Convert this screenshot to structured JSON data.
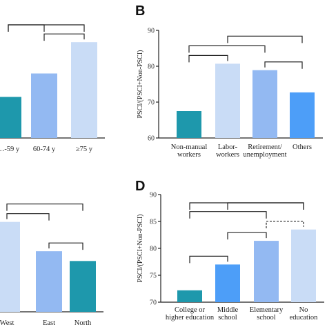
{
  "chart_data": [
    {
      "panel": "A",
      "type": "bar",
      "categories": [
        "…-59 y",
        "60-74 y",
        "≥75 y"
      ],
      "values": [
        70.5,
        76.5,
        84.5
      ],
      "colors": [
        "#1e98ac",
        "#93b9f2",
        "#c9dcf6"
      ],
      "ylim": [
        60,
        90
      ],
      "significance": [
        {
          "from": 1,
          "to": 2,
          "style": "solid"
        },
        {
          "from": 0,
          "to": 1,
          "style": "solid"
        },
        {
          "from": 0,
          "to": 2,
          "style": "solid"
        }
      ]
    },
    {
      "panel": "B",
      "type": "bar",
      "categories": [
        [
          "Non-manual",
          "workers"
        ],
        [
          "Labor-",
          "workers"
        ],
        [
          "Retirement/",
          "unemployment"
        ],
        [
          "Others"
        ]
      ],
      "values": [
        67.5,
        80.7,
        78.9,
        72.7
      ],
      "colors": [
        "#1e98ac",
        "#c9dcf6",
        "#93b9f2",
        "#4d9ef8"
      ],
      "ylabel": "PSCI/(PSCI+Non-PSCI)",
      "ylim": [
        60,
        90
      ],
      "yticks": [
        60,
        70,
        80,
        90
      ],
      "significance": [
        {
          "from": 0,
          "to": 1,
          "style": "solid"
        },
        {
          "from": 2,
          "to": 3,
          "style": "solid"
        },
        {
          "from": 0,
          "to": 2,
          "style": "solid"
        },
        {
          "from": 1,
          "to": 3,
          "style": "solid"
        }
      ]
    },
    {
      "panel": "C",
      "type": "bar",
      "categories": [
        "West",
        "East",
        "North"
      ],
      "values": [
        83,
        75.5,
        73
      ],
      "colors": [
        "#c9dcf6",
        "#93b9f2",
        "#1e98ac"
      ],
      "ylim": [
        60,
        90
      ],
      "significance": [
        {
          "from": 1,
          "to": 2,
          "style": "solid"
        },
        {
          "from": 0,
          "to": 1,
          "style": "solid"
        },
        {
          "from": 0,
          "to": 2,
          "style": "solid"
        }
      ]
    },
    {
      "panel": "D",
      "type": "bar",
      "categories": [
        [
          "College or",
          "higher education"
        ],
        [
          "Middle",
          "school"
        ],
        [
          "Elementary",
          "school"
        ],
        [
          "No",
          "education"
        ]
      ],
      "values": [
        72.2,
        77,
        81.4,
        83.5
      ],
      "colors": [
        "#1e98ac",
        "#4d9ef8",
        "#93b9f2",
        "#c9dcf6"
      ],
      "ylabel": "PSCI/(PSCI+Non-PSCI)",
      "ylim": [
        70,
        90
      ],
      "yticks": [
        70,
        75,
        80,
        85,
        90
      ],
      "significance": [
        {
          "from": 0,
          "to": 1,
          "style": "solid"
        },
        {
          "from": 1,
          "to": 2,
          "style": "solid"
        },
        {
          "from": 2,
          "to": 3,
          "style": "dashed"
        },
        {
          "from": 0,
          "to": 2,
          "style": "solid"
        },
        {
          "from": 1,
          "to": 3,
          "style": "solid"
        },
        {
          "from": 0,
          "to": 3,
          "style": "solid"
        }
      ]
    }
  ],
  "panel_labels": {
    "b": "B",
    "d": "D"
  }
}
